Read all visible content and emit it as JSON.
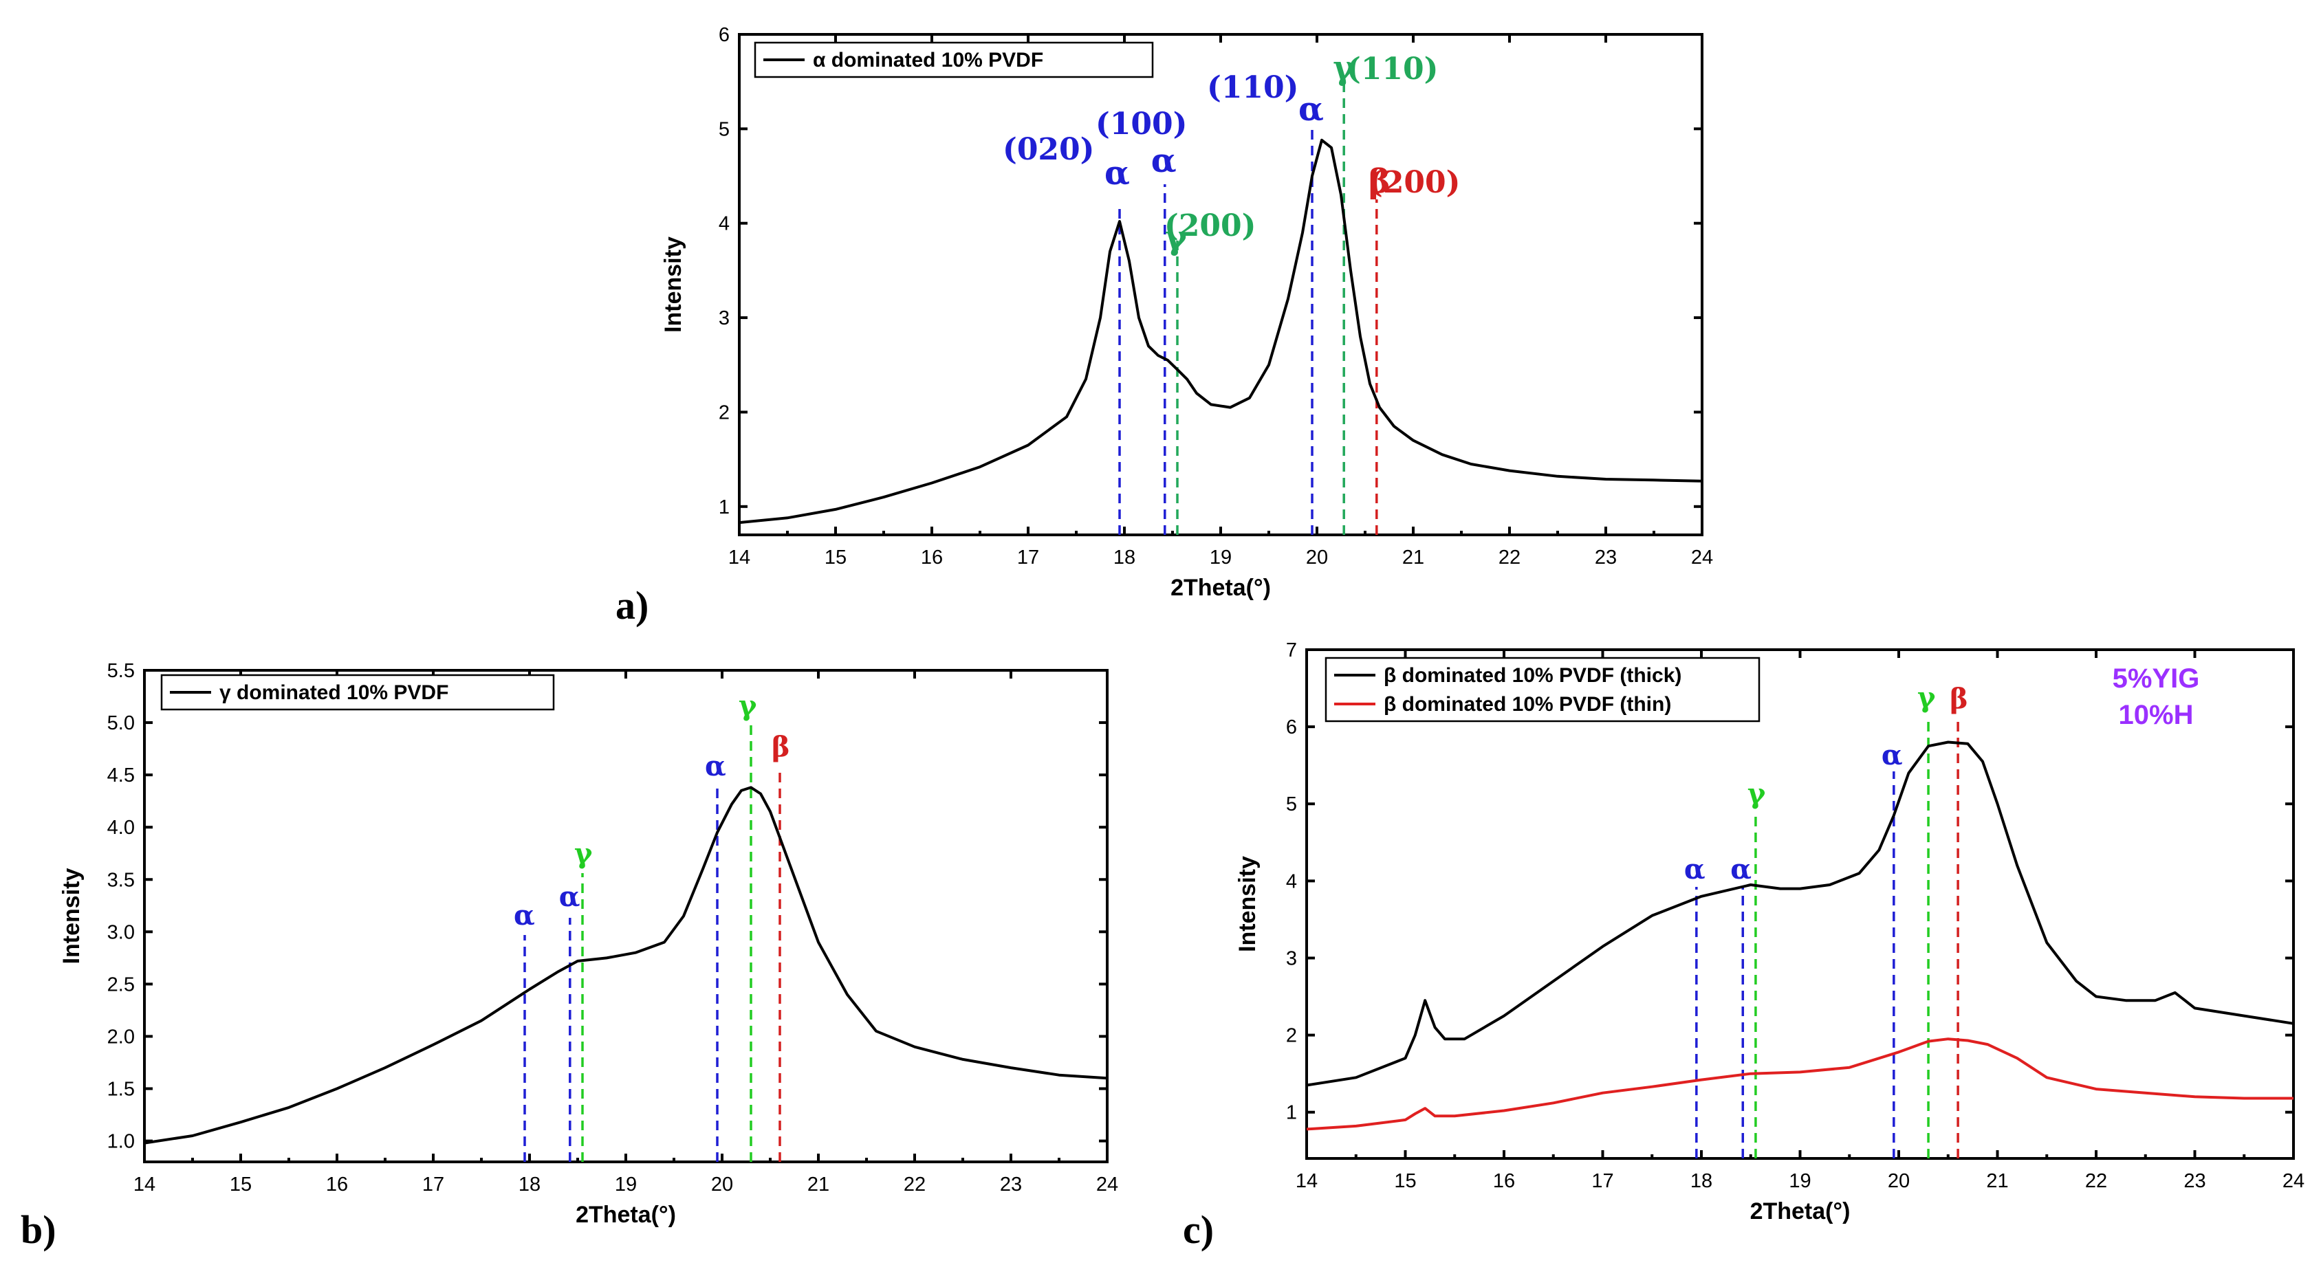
{
  "figure": {
    "background": "#ffffff"
  },
  "chart_data": [
    {
      "id": "a",
      "panel_label": "a)",
      "type": "line",
      "xlabel": "2Theta(°)",
      "ylabel": "Intensity",
      "xlim": [
        14,
        24
      ],
      "ylim": [
        0.7,
        6
      ],
      "xticks": [
        14,
        15,
        16,
        17,
        18,
        19,
        20,
        21,
        22,
        23,
        24
      ],
      "xtick_labels": [
        "14",
        "15",
        "16",
        "17",
        "18",
        "19",
        "20",
        "21",
        "22",
        "23",
        "24"
      ],
      "yticks": [
        1,
        2,
        3,
        4,
        5,
        6
      ],
      "ytick_labels": [
        "1",
        "2",
        "3",
        "4",
        "5",
        "6"
      ],
      "legend": {
        "position": "top-left",
        "entries": [
          {
            "label": "α dominated 10% PVDF",
            "color": "#000000"
          }
        ]
      },
      "series": [
        {
          "name": "α dominated 10% PVDF",
          "color": "#000000",
          "x": [
            14.0,
            14.5,
            15.0,
            15.5,
            16.0,
            16.5,
            17.0,
            17.4,
            17.6,
            17.75,
            17.85,
            17.95,
            18.05,
            18.15,
            18.25,
            18.35,
            18.45,
            18.55,
            18.65,
            18.75,
            18.9,
            19.1,
            19.3,
            19.5,
            19.7,
            19.85,
            19.95,
            20.05,
            20.15,
            20.25,
            20.35,
            20.45,
            20.55,
            20.65,
            20.8,
            21.0,
            21.3,
            21.6,
            22.0,
            22.5,
            23.0,
            23.5,
            24.0
          ],
          "y": [
            0.83,
            0.88,
            0.97,
            1.1,
            1.25,
            1.42,
            1.65,
            1.95,
            2.35,
            3.0,
            3.7,
            4.02,
            3.6,
            3.0,
            2.7,
            2.6,
            2.55,
            2.45,
            2.35,
            2.2,
            2.08,
            2.05,
            2.15,
            2.5,
            3.2,
            3.9,
            4.5,
            4.88,
            4.8,
            4.3,
            3.5,
            2.8,
            2.3,
            2.05,
            1.85,
            1.7,
            1.55,
            1.45,
            1.38,
            1.32,
            1.29,
            1.28,
            1.27
          ]
        }
      ],
      "reference_lines": [
        {
          "x": 17.95,
          "phase": "α",
          "hkl": "(020)",
          "color": "#1f1fd4"
        },
        {
          "x": 18.42,
          "phase": "α",
          "hkl": "(100)",
          "color": "#1f1fd4"
        },
        {
          "x": 18.55,
          "phase": "γ",
          "hkl": "(200)",
          "color": "#22a85a"
        },
        {
          "x": 19.95,
          "phase": "α",
          "hkl": "(110)",
          "color": "#1f1fd4"
        },
        {
          "x": 20.28,
          "phase": "γ",
          "hkl": "(110)",
          "color": "#22a85a"
        },
        {
          "x": 20.62,
          "phase": "β",
          "hkl": "(200)",
          "color": "#d42020"
        }
      ]
    },
    {
      "id": "b",
      "panel_label": "b)",
      "type": "line",
      "xlabel": "2Theta(°)",
      "ylabel": "Intensity",
      "xlim": [
        14,
        24
      ],
      "ylim": [
        0.8,
        5.5
      ],
      "xticks": [
        14,
        15,
        16,
        17,
        18,
        19,
        20,
        21,
        22,
        23,
        24
      ],
      "xtick_labels": [
        "14",
        "15",
        "16",
        "17",
        "18",
        "19",
        "20",
        "21",
        "22",
        "23",
        "24"
      ],
      "yticks": [
        1.0,
        1.5,
        2.0,
        2.5,
        3.0,
        3.5,
        4.0,
        4.5,
        5.0,
        5.5
      ],
      "ytick_labels": [
        "1.0",
        "1.5",
        "2.0",
        "2.5",
        "3.0",
        "3.5",
        "4.0",
        "4.5",
        "5.0",
        "5.5"
      ],
      "legend": {
        "position": "top-left",
        "entries": [
          {
            "label": "γ dominated 10% PVDF",
            "color": "#000000"
          }
        ]
      },
      "series": [
        {
          "name": "γ dominated 10% PVDF",
          "color": "#000000",
          "x": [
            14.0,
            14.5,
            15.0,
            15.5,
            16.0,
            16.5,
            17.0,
            17.5,
            18.0,
            18.3,
            18.5,
            18.8,
            19.1,
            19.4,
            19.6,
            19.8,
            19.95,
            20.1,
            20.2,
            20.3,
            20.4,
            20.5,
            20.6,
            20.8,
            21.0,
            21.3,
            21.6,
            22.0,
            22.5,
            23.0,
            23.5,
            24.0
          ],
          "y": [
            0.98,
            1.05,
            1.18,
            1.32,
            1.5,
            1.7,
            1.92,
            2.15,
            2.45,
            2.62,
            2.72,
            2.75,
            2.8,
            2.9,
            3.15,
            3.6,
            3.95,
            4.22,
            4.35,
            4.38,
            4.32,
            4.15,
            3.9,
            3.4,
            2.9,
            2.4,
            2.05,
            1.9,
            1.78,
            1.7,
            1.63,
            1.6
          ]
        }
      ],
      "reference_lines": [
        {
          "x": 17.95,
          "phase": "α",
          "color": "#1f1fd4"
        },
        {
          "x": 18.42,
          "phase": "α",
          "color": "#1f1fd4"
        },
        {
          "x": 18.55,
          "phase": "γ",
          "color": "#22cc22"
        },
        {
          "x": 19.95,
          "phase": "α",
          "color": "#1f1fd4"
        },
        {
          "x": 20.3,
          "phase": "γ",
          "color": "#22cc22"
        },
        {
          "x": 20.6,
          "phase": "β",
          "color": "#d42020"
        }
      ]
    },
    {
      "id": "c",
      "panel_label": "c)",
      "type": "line",
      "xlabel": "2Theta(°)",
      "ylabel": "Intensity",
      "xlim": [
        14,
        24
      ],
      "ylim": [
        0.4,
        7
      ],
      "xticks": [
        14,
        15,
        16,
        17,
        18,
        19,
        20,
        21,
        22,
        23,
        24
      ],
      "xtick_labels": [
        "14",
        "15",
        "16",
        "17",
        "18",
        "19",
        "20",
        "21",
        "22",
        "23",
        "24"
      ],
      "yticks": [
        1,
        2,
        3,
        4,
        5,
        6,
        7
      ],
      "ytick_labels": [
        "1",
        "2",
        "3",
        "4",
        "5",
        "6",
        "7"
      ],
      "legend": {
        "position": "top-left",
        "entries": [
          {
            "label": "β dominated 10% PVDF (thick)",
            "color": "#000000"
          },
          {
            "label": "β dominated 10% PVDF (thin)",
            "color": "#e02020"
          }
        ]
      },
      "annotations_text": [
        "5%YIG",
        "10%H"
      ],
      "series": [
        {
          "name": "β dominated 10% PVDF (thick)",
          "color": "#000000",
          "x": [
            14.0,
            14.5,
            15.0,
            15.1,
            15.2,
            15.3,
            15.4,
            15.6,
            16.0,
            16.5,
            17.0,
            17.5,
            18.0,
            18.5,
            18.8,
            19.0,
            19.3,
            19.6,
            19.8,
            19.95,
            20.1,
            20.3,
            20.5,
            20.7,
            20.85,
            21.0,
            21.2,
            21.5,
            21.8,
            22.0,
            22.3,
            22.6,
            22.8,
            23.0,
            23.5,
            24.0
          ],
          "y": [
            1.35,
            1.45,
            1.7,
            2.0,
            2.45,
            2.1,
            1.95,
            1.95,
            2.25,
            2.7,
            3.15,
            3.55,
            3.8,
            3.95,
            3.9,
            3.9,
            3.95,
            4.1,
            4.4,
            4.85,
            5.4,
            5.75,
            5.8,
            5.78,
            5.55,
            5.0,
            4.2,
            3.2,
            2.7,
            2.5,
            2.45,
            2.45,
            2.55,
            2.35,
            2.25,
            2.15
          ]
        },
        {
          "name": "β dominated 10% PVDF (thin)",
          "color": "#e02020",
          "x": [
            14.0,
            14.5,
            15.0,
            15.1,
            15.2,
            15.3,
            15.5,
            16.0,
            16.5,
            17.0,
            17.5,
            18.0,
            18.5,
            19.0,
            19.5,
            20.0,
            20.3,
            20.5,
            20.7,
            20.9,
            21.2,
            21.5,
            22.0,
            22.5,
            23.0,
            23.5,
            24.0
          ],
          "y": [
            0.78,
            0.82,
            0.9,
            0.98,
            1.05,
            0.95,
            0.95,
            1.02,
            1.12,
            1.25,
            1.33,
            1.42,
            1.5,
            1.52,
            1.58,
            1.78,
            1.92,
            1.95,
            1.93,
            1.88,
            1.7,
            1.45,
            1.3,
            1.25,
            1.2,
            1.18,
            1.18
          ]
        }
      ],
      "reference_lines": [
        {
          "x": 17.95,
          "phase": "α",
          "color": "#1f1fd4"
        },
        {
          "x": 18.42,
          "phase": "α",
          "color": "#1f1fd4"
        },
        {
          "x": 18.55,
          "phase": "γ",
          "color": "#22cc22"
        },
        {
          "x": 19.95,
          "phase": "α",
          "color": "#1f1fd4"
        },
        {
          "x": 20.3,
          "phase": "γ",
          "color": "#22cc22"
        },
        {
          "x": 20.6,
          "phase": "β",
          "color": "#d42020"
        }
      ]
    }
  ]
}
